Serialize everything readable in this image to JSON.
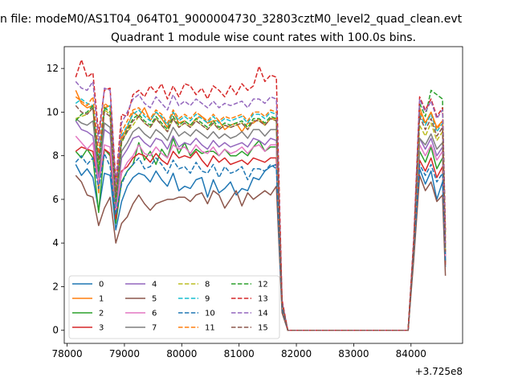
{
  "figure": {
    "suptitle": "n file: modeM0/AS1T04_064T01_9000004730_32803cztM0_level2_quad_clean.evt",
    "x_offset_label": "+3.725e8"
  },
  "chart_data": {
    "type": "line",
    "title": "Quadrant 1 module wise count rates with 100.0s bins.",
    "xlabel": "",
    "ylabel": "",
    "x_offset": 372500000,
    "xlim": [
      77950,
      84900
    ],
    "ylim": [
      -0.6,
      13.0
    ],
    "x_ticks": [
      78000,
      79000,
      80000,
      81000,
      82000,
      83000,
      84000
    ],
    "y_ticks": [
      0,
      2,
      4,
      6,
      8,
      10,
      12
    ],
    "grid": false,
    "legend": {
      "placement": "lower-left",
      "columns": 4
    },
    "x": [
      78150,
      78250,
      78350,
      78450,
      78550,
      78650,
      78750,
      78850,
      78950,
      79050,
      79150,
      79250,
      79350,
      79450,
      79550,
      79650,
      79750,
      79850,
      79950,
      80050,
      80150,
      80250,
      80350,
      80450,
      80550,
      80650,
      80750,
      80850,
      80950,
      81050,
      81150,
      81250,
      81350,
      81450,
      81550,
      81650,
      81750,
      81850,
      81950,
      82050,
      82150,
      82250,
      82350,
      82450,
      82550,
      82650,
      82750,
      82850,
      82950,
      83050,
      83150,
      83250,
      83350,
      83450,
      83550,
      83650,
      83750,
      83850,
      83950,
      84050,
      84150,
      84250,
      84350,
      84450,
      84550,
      84600
    ],
    "series": [
      {
        "name": "0",
        "color": "#1f77b4",
        "dash": "solid",
        "values": [
          7.6,
          7.1,
          7.4,
          7.0,
          5.5,
          7.2,
          7.1,
          4.6,
          5.9,
          6.6,
          7.0,
          7.2,
          7.1,
          6.8,
          7.3,
          6.9,
          6.6,
          7.2,
          6.4,
          6.6,
          6.5,
          6.9,
          7.0,
          6.1,
          6.9,
          6.3,
          6.5,
          6.8,
          6.2,
          6.5,
          6.4,
          7.0,
          6.9,
          7.3,
          7.5,
          7.6,
          1.0,
          0.0,
          0,
          0,
          0,
          0,
          0,
          0,
          0,
          0,
          0,
          0,
          0,
          0,
          0,
          0,
          0,
          0,
          0,
          0,
          0,
          0,
          0,
          3.8,
          7.4,
          6.7,
          7.3,
          6.0,
          6.8,
          2.9
        ]
      },
      {
        "name": "1",
        "color": "#ff7f0e",
        "dash": "solid",
        "values": [
          11.0,
          10.4,
          10.2,
          10.3,
          6.3,
          10.2,
          10.3,
          6.2,
          8.8,
          9.3,
          10.0,
          9.8,
          10.2,
          9.6,
          10.0,
          9.7,
          9.3,
          10.0,
          9.5,
          9.6,
          9.4,
          9.7,
          9.8,
          9.5,
          9.6,
          9.6,
          9.2,
          9.4,
          9.5,
          9.1,
          9.5,
          9.5,
          9.7,
          9.4,
          9.7,
          9.7,
          1.2,
          0.0,
          0,
          0,
          0,
          0,
          0,
          0,
          0,
          0,
          0,
          0,
          0,
          0,
          0,
          0,
          0,
          0,
          0,
          0,
          0,
          0,
          0,
          3.9,
          10.2,
          9.5,
          10.0,
          9.3,
          9.6,
          4.2
        ]
      },
      {
        "name": "2",
        "color": "#2ca02c",
        "dash": "solid",
        "values": [
          8.2,
          7.9,
          8.3,
          7.9,
          5.4,
          8.3,
          8.0,
          4.9,
          6.8,
          7.3,
          7.6,
          8.6,
          7.8,
          8.2,
          7.6,
          8.3,
          7.9,
          8.8,
          8.1,
          8.6,
          8.0,
          8.3,
          8.1,
          8.2,
          8.2,
          8.0,
          8.3,
          8.0,
          8.0,
          8.2,
          8.0,
          8.4,
          8.7,
          8.2,
          8.4,
          8.4,
          1.1,
          0.0,
          0,
          0,
          0,
          0,
          0,
          0,
          0,
          0,
          0,
          0,
          0,
          0,
          0,
          0,
          0,
          0,
          0,
          0,
          0,
          0,
          0,
          3.8,
          8.2,
          7.7,
          8.4,
          7.4,
          7.9,
          3.1
        ]
      },
      {
        "name": "3",
        "color": "#d62728",
        "dash": "solid",
        "values": [
          8.2,
          8.4,
          8.3,
          8.2,
          6.7,
          8.3,
          8.1,
          5.1,
          7.3,
          7.5,
          7.9,
          8.1,
          8.0,
          7.7,
          8.1,
          7.8,
          7.6,
          8.2,
          7.9,
          8.0,
          7.9,
          8.2,
          7.8,
          7.5,
          8.0,
          7.7,
          7.9,
          7.6,
          7.7,
          7.8,
          7.6,
          7.9,
          7.8,
          7.7,
          7.9,
          7.9,
          1.1,
          0.0,
          0,
          0,
          0,
          0,
          0,
          0,
          0,
          0,
          0,
          0,
          0,
          0,
          0,
          0,
          0,
          0,
          0,
          0,
          0,
          0,
          0,
          3.6,
          7.8,
          7.3,
          7.9,
          7.0,
          7.5,
          3.0
        ]
      },
      {
        "name": "4",
        "color": "#9467bd",
        "dash": "solid",
        "values": [
          9.6,
          9.2,
          9.1,
          8.9,
          7.0,
          9.2,
          9.0,
          5.6,
          7.9,
          8.3,
          8.8,
          8.9,
          8.6,
          8.4,
          8.8,
          8.7,
          8.3,
          8.9,
          8.4,
          8.6,
          8.5,
          8.8,
          8.5,
          8.3,
          8.7,
          8.4,
          8.6,
          8.4,
          8.5,
          8.6,
          8.4,
          8.8,
          8.7,
          8.5,
          8.8,
          8.7,
          1.2,
          0.0,
          0,
          0,
          0,
          0,
          0,
          0,
          0,
          0,
          0,
          0,
          0,
          0,
          0,
          0,
          0,
          0,
          0,
          0,
          0,
          0,
          0,
          3.9,
          8.8,
          8.3,
          8.8,
          8.0,
          8.4,
          3.4
        ]
      },
      {
        "name": "5",
        "color": "#8c564b",
        "dash": "solid",
        "values": [
          7.1,
          6.8,
          6.2,
          6.1,
          4.8,
          5.6,
          6.1,
          4.0,
          4.9,
          5.2,
          5.8,
          6.2,
          5.8,
          5.5,
          5.8,
          5.9,
          6.0,
          6.0,
          6.1,
          6.1,
          5.9,
          6.2,
          6.3,
          5.8,
          6.4,
          6.2,
          5.6,
          6.0,
          6.4,
          5.7,
          6.3,
          6.0,
          6.2,
          6.4,
          6.2,
          6.6,
          0.8,
          0.0,
          0,
          0,
          0,
          0,
          0,
          0,
          0,
          0,
          0,
          0,
          0,
          0,
          0,
          0,
          0,
          0,
          0,
          0,
          0,
          0,
          0,
          3.3,
          7.1,
          6.4,
          6.8,
          5.9,
          6.2,
          2.5
        ]
      },
      {
        "name": "6",
        "color": "#e377c2",
        "dash": "solid",
        "values": [
          8.9,
          8.6,
          8.3,
          8.6,
          6.7,
          8.5,
          8.4,
          5.4,
          7.2,
          7.7,
          8.0,
          8.5,
          8.1,
          8.0,
          8.4,
          8.1,
          7.9,
          8.5,
          8.3,
          8.4,
          8.1,
          8.5,
          8.2,
          8.1,
          8.4,
          8.0,
          8.3,
          8.1,
          8.2,
          8.4,
          8.1,
          8.4,
          8.5,
          8.2,
          8.5,
          8.5,
          1.1,
          0.0,
          0,
          0,
          0,
          0,
          0,
          0,
          0,
          0,
          0,
          0,
          0,
          0,
          0,
          0,
          0,
          0,
          0,
          0,
          0,
          0,
          0,
          3.8,
          8.5,
          8.0,
          8.5,
          7.8,
          8.2,
          3.3
        ]
      },
      {
        "name": "7",
        "color": "#7f7f7f",
        "dash": "solid",
        "values": [
          9.7,
          9.5,
          9.4,
          9.6,
          7.2,
          9.5,
          9.3,
          5.8,
          8.2,
          8.6,
          9.1,
          9.3,
          9.0,
          8.8,
          9.2,
          9.0,
          8.7,
          9.3,
          8.9,
          9.1,
          8.9,
          9.2,
          9.0,
          8.8,
          9.1,
          8.8,
          9.0,
          8.8,
          8.9,
          9.1,
          8.8,
          9.2,
          9.2,
          8.9,
          9.2,
          9.2,
          1.2,
          0.0,
          0,
          0,
          0,
          0,
          0,
          0,
          0,
          0,
          0,
          0,
          0,
          0,
          0,
          0,
          0,
          0,
          0,
          0,
          0,
          0,
          0,
          3.9,
          8.8,
          8.5,
          9.0,
          8.3,
          8.6,
          3.5
        ]
      },
      {
        "name": "8",
        "color": "#bcbd22",
        "dash": "dashed",
        "values": [
          9.7,
          9.8,
          9.9,
          10.2,
          7.6,
          10.1,
          9.9,
          6.1,
          8.6,
          9.1,
          9.4,
          9.8,
          9.5,
          9.3,
          9.7,
          9.4,
          9.1,
          9.7,
          9.3,
          9.5,
          9.3,
          9.6,
          9.4,
          9.2,
          9.5,
          9.2,
          9.4,
          9.3,
          9.4,
          9.5,
          9.2,
          9.6,
          9.6,
          9.4,
          9.7,
          9.6,
          1.2,
          0.0,
          0,
          0,
          0,
          0,
          0,
          0,
          0,
          0,
          0,
          0,
          0,
          0,
          0,
          0,
          0,
          0,
          0,
          0,
          0,
          0,
          0,
          4.0,
          9.4,
          8.9,
          9.5,
          8.7,
          9.1,
          3.7
        ]
      },
      {
        "name": "9",
        "color": "#17becf",
        "dash": "dashed",
        "values": [
          10.4,
          10.6,
          10.4,
          10.3,
          7.9,
          10.1,
          10.3,
          6.3,
          8.9,
          9.4,
          9.9,
          10.1,
          9.8,
          9.6,
          10.0,
          9.8,
          9.4,
          10.0,
          9.6,
          9.8,
          9.6,
          9.9,
          9.7,
          9.5,
          9.8,
          9.5,
          9.7,
          9.6,
          9.7,
          9.8,
          9.5,
          9.9,
          9.9,
          9.7,
          10.0,
          9.9,
          1.3,
          0.0,
          0,
          0,
          0,
          0,
          0,
          0,
          0,
          0,
          0,
          0,
          0,
          0,
          0,
          0,
          0,
          0,
          0,
          0,
          0,
          0,
          0,
          4.1,
          9.9,
          9.4,
          9.9,
          9.1,
          9.5,
          3.8
        ]
      },
      {
        "name": "10",
        "color": "#1f77b4",
        "dash": "dashed",
        "values": [
          7.7,
          8.0,
          7.6,
          7.9,
          6.5,
          8.1,
          7.5,
          5.3,
          6.7,
          7.3,
          7.6,
          7.9,
          7.4,
          7.5,
          7.9,
          7.6,
          7.2,
          7.8,
          7.4,
          7.5,
          7.2,
          7.7,
          7.3,
          7.2,
          7.6,
          7.0,
          7.5,
          7.2,
          7.3,
          7.5,
          6.9,
          7.4,
          7.4,
          7.3,
          7.6,
          7.4,
          1.0,
          0.0,
          0,
          0,
          0,
          0,
          0,
          0,
          0,
          0,
          0,
          0,
          0,
          0,
          0,
          0,
          0,
          0,
          0,
          0,
          0,
          0,
          0,
          3.7,
          7.6,
          7.1,
          7.6,
          6.8,
          7.2,
          3.2
        ]
      },
      {
        "name": "11",
        "color": "#ff7f0e",
        "dash": "dashed",
        "values": [
          10.7,
          10.5,
          10.3,
          10.7,
          8.1,
          10.4,
          10.2,
          6.4,
          9.1,
          9.6,
          10.1,
          10.2,
          9.9,
          9.7,
          10.1,
          9.9,
          9.5,
          10.1,
          9.7,
          9.9,
          9.7,
          10.0,
          9.8,
          9.6,
          9.9,
          9.6,
          9.8,
          9.7,
          9.8,
          9.9,
          9.6,
          10.0,
          10.0,
          9.8,
          10.1,
          10.0,
          1.3,
          0.0,
          0,
          0,
          0,
          0,
          0,
          0,
          0,
          0,
          0,
          0,
          0,
          0,
          0,
          0,
          0,
          0,
          0,
          0,
          0,
          0,
          0,
          4.1,
          10.0,
          9.5,
          10.0,
          9.2,
          9.6,
          3.9
        ]
      },
      {
        "name": "12",
        "color": "#2ca02c",
        "dash": "dashed",
        "values": [
          9.6,
          9.9,
          10.0,
          10.3,
          7.3,
          10.2,
          10.0,
          5.9,
          8.6,
          9.2,
          9.7,
          9.9,
          9.6,
          9.4,
          9.8,
          9.5,
          9.2,
          9.8,
          9.4,
          9.6,
          9.4,
          9.7,
          9.5,
          9.3,
          9.6,
          9.3,
          9.5,
          9.4,
          9.5,
          9.6,
          9.3,
          9.7,
          9.7,
          9.5,
          9.8,
          9.7,
          1.2,
          0.0,
          0,
          0,
          0,
          0,
          0,
          0,
          0,
          0,
          0,
          0,
          0,
          0,
          0,
          0,
          0,
          0,
          0,
          0,
          0,
          0,
          0,
          4.0,
          10.4,
          9.8,
          11.0,
          10.8,
          10.6,
          4.4
        ]
      },
      {
        "name": "13",
        "color": "#d62728",
        "dash": "dashed",
        "values": [
          11.6,
          12.4,
          11.6,
          11.8,
          9.0,
          11.0,
          11.1,
          6.8,
          9.9,
          9.8,
          10.8,
          11.0,
          10.7,
          11.2,
          10.9,
          11.3,
          10.6,
          11.2,
          10.7,
          11.3,
          11.2,
          10.8,
          11.1,
          10.6,
          11.2,
          11.0,
          10.7,
          11.2,
          10.8,
          11.3,
          11.0,
          11.2,
          12.1,
          11.4,
          11.7,
          11.6,
          1.4,
          0.0,
          0,
          0,
          0,
          0,
          0,
          0,
          0,
          0,
          0,
          0,
          0,
          0,
          0,
          0,
          0,
          0,
          0,
          0,
          0,
          0,
          0,
          4.3,
          10.7,
          10.1,
          10.6,
          9.8,
          10.2,
          4.6
        ]
      },
      {
        "name": "14",
        "color": "#9467bd",
        "dash": "dashed",
        "values": [
          11.4,
          11.1,
          11.0,
          11.4,
          8.6,
          11.1,
          11.0,
          6.6,
          9.5,
          10.0,
          10.6,
          10.8,
          10.4,
          10.2,
          10.7,
          10.4,
          10.1,
          10.8,
          10.3,
          10.5,
          10.3,
          10.6,
          10.4,
          10.2,
          10.5,
          10.2,
          10.4,
          10.3,
          10.4,
          10.5,
          10.2,
          10.6,
          10.6,
          10.4,
          10.7,
          10.6,
          1.3,
          0.0,
          0,
          0,
          0,
          0,
          0,
          0,
          0,
          0,
          0,
          0,
          0,
          0,
          0,
          0,
          0,
          0,
          0,
          0,
          0,
          0,
          0,
          4.2,
          10.6,
          10.0,
          10.5,
          9.7,
          10.1,
          4.0
        ]
      },
      {
        "name": "15",
        "color": "#8c564b",
        "dash": "dashed",
        "values": [
          10.3,
          10.0,
          9.9,
          10.2,
          7.8,
          10.0,
          9.8,
          6.2,
          8.7,
          9.1,
          9.6,
          9.8,
          9.5,
          9.3,
          9.7,
          9.4,
          9.1,
          9.7,
          9.3,
          9.5,
          9.3,
          9.6,
          9.4,
          9.2,
          9.5,
          9.2,
          9.4,
          9.3,
          9.4,
          9.5,
          9.2,
          9.6,
          9.6,
          9.4,
          9.7,
          9.6,
          1.2,
          0.0,
          0,
          0,
          0,
          0,
          0,
          0,
          0,
          0,
          0,
          0,
          0,
          0,
          0,
          0,
          0,
          0,
          0,
          0,
          0,
          0,
          0,
          4.0,
          9.8,
          9.2,
          9.7,
          8.9,
          9.3,
          3.6
        ]
      }
    ]
  }
}
